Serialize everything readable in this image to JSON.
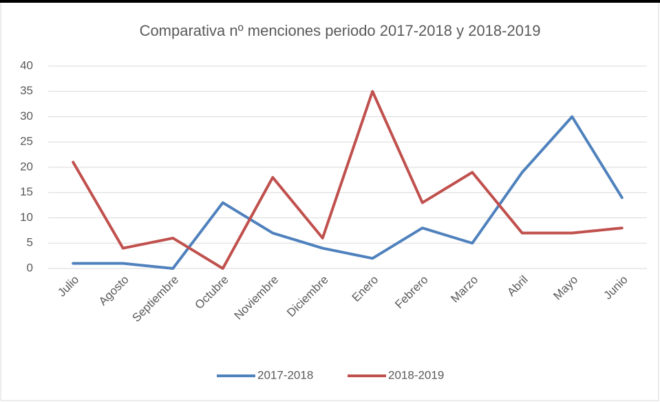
{
  "chart_data": {
    "type": "line",
    "title": "Comparativa nº menciones periodo 2017-2018 y 2018-2019",
    "categories": [
      "Julio",
      "Agosto",
      "Septiembre",
      "Octubre",
      "Noviembre",
      "Diciembre",
      "Enero",
      "Febrero",
      "Marzo",
      "Abril",
      "Mayo",
      "Junio"
    ],
    "series": [
      {
        "name": "2017-2018",
        "color": "#4f81bd",
        "values": [
          1,
          1,
          0,
          13,
          7,
          4,
          2,
          8,
          5,
          19,
          30,
          14
        ]
      },
      {
        "name": "2018-2019",
        "color": "#c0504d",
        "values": [
          21,
          4,
          6,
          0,
          18,
          6,
          35,
          13,
          19,
          7,
          7,
          8
        ]
      }
    ],
    "ylim": [
      0,
      40
    ],
    "yticks": [
      0,
      5,
      10,
      15,
      20,
      25,
      30,
      35,
      40
    ],
    "grid": true,
    "legend": "bottom"
  }
}
